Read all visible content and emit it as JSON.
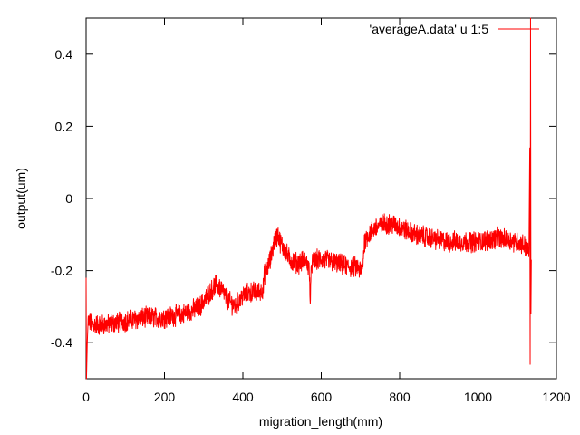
{
  "chart_data": {
    "type": "line",
    "title": "",
    "xlabel": "migration_length(mm)",
    "ylabel": "output(um)",
    "xlim": [
      0,
      1200
    ],
    "ylim": [
      -0.5,
      0.5
    ],
    "x_ticks": [
      0,
      200,
      400,
      600,
      800,
      1000,
      1200
    ],
    "y_ticks": [
      -0.4,
      -0.2,
      0,
      0.2,
      0.4
    ],
    "x_tick_labels": [
      "0",
      "200",
      "400",
      "600",
      "800",
      "1000",
      "1200"
    ],
    "y_tick_labels": [
      "-0.4",
      "-0.2",
      "0",
      "0.2",
      "0.4"
    ],
    "grid": false,
    "legend": {
      "position": "top-right"
    },
    "series": [
      {
        "name": "'averageA.data' u 1:5",
        "color": "#ff0000",
        "noise_amplitude": 0.025,
        "x": [
          0,
          1,
          3,
          5,
          20,
          50,
          100,
          150,
          200,
          250,
          290,
          310,
          330,
          345,
          360,
          380,
          400,
          420,
          440,
          452,
          455,
          460,
          470,
          480,
          490,
          495,
          505,
          520,
          540,
          560,
          570,
          572,
          575,
          590,
          610,
          640,
          670,
          690,
          700,
          705,
          710,
          720,
          740,
          760,
          780,
          800,
          840,
          880,
          920,
          960,
          1000,
          1050,
          1100,
          1120,
          1130,
          1132,
          1133,
          1134,
          1135,
          1136
        ],
        "y": [
          -0.22,
          -0.5,
          -0.4,
          -0.34,
          -0.35,
          -0.35,
          -0.34,
          -0.33,
          -0.33,
          -0.32,
          -0.3,
          -0.27,
          -0.24,
          -0.25,
          -0.28,
          -0.3,
          -0.27,
          -0.26,
          -0.26,
          -0.25,
          -0.21,
          -0.2,
          -0.17,
          -0.12,
          -0.1,
          -0.12,
          -0.14,
          -0.17,
          -0.18,
          -0.17,
          -0.2,
          -0.3,
          -0.18,
          -0.17,
          -0.17,
          -0.18,
          -0.19,
          -0.19,
          -0.2,
          -0.2,
          -0.12,
          -0.1,
          -0.08,
          -0.07,
          -0.07,
          -0.08,
          -0.1,
          -0.11,
          -0.12,
          -0.12,
          -0.12,
          -0.11,
          -0.12,
          -0.13,
          -0.15,
          0.14,
          -0.46,
          0.5,
          -0.32,
          -0.17
        ]
      }
    ]
  }
}
